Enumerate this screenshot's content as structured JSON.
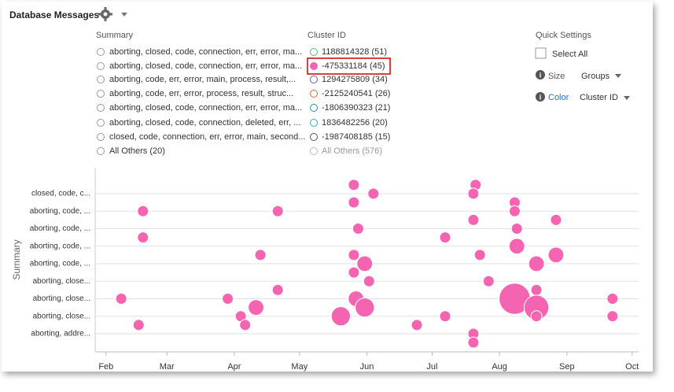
{
  "header": {
    "title": "Database Messages"
  },
  "summary": {
    "title": "Summary",
    "items": [
      "aborting, closed, code, connection, err, error, ma...",
      "aborting, closed, code, connection, err, error, ma...",
      "aborting, code, err, error, main, process, result,...",
      "aborting, code, err, error, process, result, struc...",
      "aborting, closed, code, connection, err, error, ma...",
      "aborting, closed, code, connection, deleted, err, ...",
      "closed, code, connection, err, error, main, second...",
      "All Others (20)"
    ]
  },
  "cluster": {
    "title": "Cluster ID",
    "items": [
      {
        "label": "1188814328 (51)",
        "color": "#5cbf6e"
      },
      {
        "label": "-475331184 (45)",
        "color": "#f564b0"
      },
      {
        "label": "1294275809 (34)",
        "color": "#6a5aa8"
      },
      {
        "label": "-2125240541 (26)",
        "color": "#e8673a"
      },
      {
        "label": "-1806390323 (21)",
        "color": "#2a8ea0"
      },
      {
        "label": "1836482256 (20)",
        "color": "#3aa0d8"
      },
      {
        "label": "-1987408185 (15)",
        "color": "#555555"
      },
      {
        "label": "All Others (576)",
        "color": "#bbbbbb"
      }
    ]
  },
  "quick_settings": {
    "title": "Quick Settings",
    "select_all": "Select All",
    "size_label": "Size",
    "size_value": "Groups",
    "color_label": "Color",
    "color_value": "Cluster ID"
  },
  "chart_data": {
    "type": "scatter",
    "y_label": "Summary",
    "color": "#f564b0",
    "x": [
      146,
      155,
      202,
      201,
      220,
      146,
      49,
      111,
      220,
      201,
      239,
      148,
      221,
      49,
      188,
      221,
      103,
      146,
      151,
      204,
      239,
      230,
      146,
      153,
      208,
      111,
      230,
      39,
      88,
      147,
      220,
      265,
      101,
      151,
      230,
      94,
      140,
      188,
      230,
      265,
      47,
      96,
      175,
      201,
      201
    ],
    "y": [
      9.5,
      9,
      9.5,
      9,
      8.5,
      8.5,
      8,
      8,
      8,
      7.5,
      7.5,
      7,
      7,
      6.5,
      6.5,
      6,
      5.5,
      5.5,
      5,
      5.5,
      5.5,
      5,
      4.5,
      4,
      4,
      3.5,
      3.5,
      3,
      3,
      3,
      3,
      3,
      2.5,
      2.5,
      2.5,
      2,
      2,
      2,
      2,
      2,
      1.5,
      1.5,
      1.5,
      1,
      0.5
    ],
    "sizes": [
      1,
      1,
      1,
      1,
      1,
      1,
      1,
      1,
      1,
      1,
      1,
      1,
      1,
      1,
      1,
      2,
      1,
      1,
      2,
      1,
      2,
      2,
      1,
      1,
      1,
      1,
      1,
      1,
      1,
      2,
      8,
      1,
      2,
      3,
      5,
      1,
      3,
      1,
      1,
      1,
      1,
      1,
      1,
      1,
      1
    ],
    "xlim": [
      27,
      277
    ],
    "xticks": [
      {
        "value": 32,
        "label": "Feb"
      },
      {
        "value": 60,
        "label": "Mar"
      },
      {
        "value": 91,
        "label": "Apr"
      },
      {
        "value": 121,
        "label": "May"
      },
      {
        "value": 152,
        "label": "Jun"
      },
      {
        "value": 182,
        "label": "Jul"
      },
      {
        "value": 213,
        "label": "Aug"
      },
      {
        "value": 244,
        "label": "Sep"
      },
      {
        "value": 274,
        "label": "Oct"
      }
    ],
    "ylim": [
      0,
      10.5
    ],
    "yticks": [
      {
        "value": 1,
        "label": "aborting, addre..."
      },
      {
        "value": 2,
        "label": "aborting, close..."
      },
      {
        "value": 3,
        "label": "aborting, close..."
      },
      {
        "value": 4,
        "label": "aborting, close..."
      },
      {
        "value": 5,
        "label": "aborting, code, ..."
      },
      {
        "value": 6,
        "label": "aborting, code, ..."
      },
      {
        "value": 7,
        "label": "aborting, code, ..."
      },
      {
        "value": 8,
        "label": "aborting, code, ..."
      },
      {
        "value": 9,
        "label": "closed, code, c..."
      }
    ],
    "grid": true
  }
}
